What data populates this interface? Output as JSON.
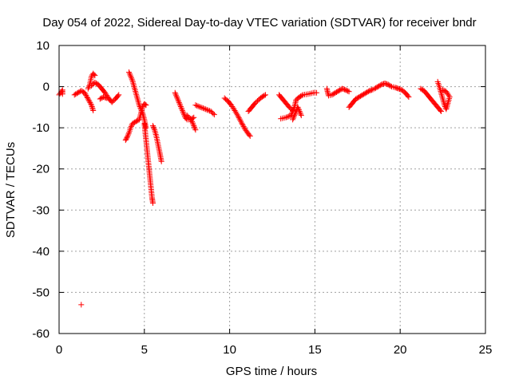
{
  "chart_data": {
    "type": "scatter",
    "title": "Day 054 of 2022, Sidereal Day-to-day VTEC variation (SDTVAR) for receiver bndr",
    "xlabel": "GPS time / hours",
    "ylabel": "SDTVAR / TECUs",
    "xlim": [
      0,
      25
    ],
    "ylim": [
      -60,
      10
    ],
    "xticks": [
      0,
      5,
      10,
      15,
      20,
      25
    ],
    "yticks": [
      10,
      0,
      -10,
      -20,
      -30,
      -40,
      -50,
      -60
    ],
    "xtick_labels": [
      "0",
      "5",
      "10",
      "15",
      "20",
      "25"
    ],
    "ytick_labels": [
      "10",
      "0",
      "-10",
      "-20",
      "-30",
      "-40",
      "-50",
      "-60"
    ],
    "grid": true,
    "legend": "none",
    "marker": "plus",
    "color": "#ff0000",
    "segments": [
      [
        [
          0.0,
          -2.0
        ],
        [
          0.1,
          -1.4
        ],
        [
          0.2,
          -0.8
        ],
        [
          0.2,
          -1.8
        ]
      ],
      [
        [
          0.9,
          -2.0
        ],
        [
          1.1,
          -1.5
        ],
        [
          1.3,
          -1.0
        ],
        [
          1.5,
          -1.5
        ],
        [
          1.7,
          -3.0
        ],
        [
          1.9,
          -4.5
        ],
        [
          2.0,
          -5.8
        ]
      ],
      [
        [
          1.7,
          -0.5
        ],
        [
          1.8,
          0.5
        ],
        [
          1.9,
          2.5
        ],
        [
          2.0,
          3.2
        ],
        [
          2.1,
          2.7
        ]
      ],
      [
        [
          1.9,
          0.2
        ],
        [
          2.1,
          1.0
        ],
        [
          2.3,
          0.5
        ],
        [
          2.5,
          -0.5
        ],
        [
          2.7,
          -1.5
        ],
        [
          2.9,
          -2.8
        ],
        [
          3.1,
          -3.8
        ],
        [
          3.3,
          -3.0
        ],
        [
          3.5,
          -2.0
        ]
      ],
      [
        [
          2.4,
          -3.0
        ],
        [
          2.6,
          -2.5
        ],
        [
          2.8,
          -2.8
        ]
      ],
      [
        [
          4.1,
          3.5
        ],
        [
          4.2,
          2.5
        ],
        [
          4.3,
          1.5
        ],
        [
          4.4,
          0.0
        ],
        [
          4.5,
          -1.5
        ],
        [
          4.6,
          -3.0
        ],
        [
          4.7,
          -4.5
        ],
        [
          4.8,
          -5.5
        ],
        [
          4.9,
          -6.5
        ],
        [
          5.0,
          -8.0
        ],
        [
          5.1,
          -10.0
        ]
      ],
      [
        [
          3.9,
          -13.0
        ],
        [
          4.0,
          -12.2
        ],
        [
          4.1,
          -11.2
        ],
        [
          4.2,
          -10.0
        ],
        [
          4.3,
          -9.0
        ],
        [
          4.5,
          -8.5
        ],
        [
          4.7,
          -8.0
        ],
        [
          4.8,
          -6.5
        ],
        [
          4.9,
          -4.8
        ],
        [
          5.0,
          -4.2
        ],
        [
          5.1,
          -4.5
        ]
      ],
      [
        [
          5.0,
          -9.0
        ],
        [
          5.05,
          -11.0
        ],
        [
          5.1,
          -13.0
        ],
        [
          5.15,
          -15.0
        ],
        [
          5.2,
          -17.0
        ],
        [
          5.25,
          -19.0
        ],
        [
          5.3,
          -21.0
        ],
        [
          5.35,
          -23.0
        ],
        [
          5.4,
          -25.0
        ],
        [
          5.45,
          -27.0
        ],
        [
          5.5,
          -28.3
        ]
      ],
      [
        [
          5.5,
          -9.5
        ],
        [
          5.6,
          -10.5
        ],
        [
          5.7,
          -12.0
        ],
        [
          5.8,
          -14.0
        ],
        [
          5.9,
          -16.0
        ],
        [
          6.0,
          -18.2
        ]
      ],
      [
        [
          6.8,
          -1.5
        ],
        [
          6.9,
          -2.5
        ],
        [
          7.0,
          -3.5
        ],
        [
          7.1,
          -4.5
        ],
        [
          7.2,
          -5.5
        ],
        [
          7.3,
          -6.5
        ],
        [
          7.4,
          -7.5
        ],
        [
          7.5,
          -8.0
        ],
        [
          7.7,
          -8.0
        ],
        [
          7.9,
          -7.5
        ]
      ],
      [
        [
          7.5,
          -7.0
        ],
        [
          7.7,
          -7.8
        ],
        [
          7.8,
          -8.5
        ],
        [
          7.9,
          -9.5
        ],
        [
          8.0,
          -10.5
        ]
      ],
      [
        [
          8.0,
          -4.5
        ],
        [
          8.3,
          -5.0
        ],
        [
          8.6,
          -5.5
        ],
        [
          8.9,
          -6.0
        ],
        [
          9.1,
          -6.8
        ]
      ],
      [
        [
          9.7,
          -2.8
        ],
        [
          9.9,
          -3.5
        ],
        [
          10.1,
          -4.5
        ],
        [
          10.3,
          -5.8
        ],
        [
          10.5,
          -7.2
        ],
        [
          10.7,
          -8.8
        ],
        [
          10.9,
          -10.3
        ],
        [
          11.1,
          -11.5
        ],
        [
          11.2,
          -12.0
        ]
      ],
      [
        [
          11.1,
          -6.0
        ],
        [
          11.3,
          -5.0
        ],
        [
          11.5,
          -4.0
        ],
        [
          11.7,
          -3.2
        ],
        [
          11.9,
          -2.5
        ],
        [
          12.1,
          -2.0
        ]
      ],
      [
        [
          12.9,
          -2.0
        ],
        [
          13.1,
          -3.0
        ],
        [
          13.3,
          -4.0
        ],
        [
          13.5,
          -5.0
        ],
        [
          13.7,
          -5.8
        ]
      ],
      [
        [
          13.0,
          -7.8
        ],
        [
          13.3,
          -7.5
        ],
        [
          13.6,
          -7.0
        ],
        [
          13.8,
          -5.0
        ],
        [
          13.9,
          -3.2
        ],
        [
          14.1,
          -2.5
        ],
        [
          14.3,
          -2.0
        ],
        [
          14.6,
          -1.8
        ],
        [
          14.9,
          -1.5
        ],
        [
          15.1,
          -1.5
        ]
      ],
      [
        [
          13.7,
          -8.0
        ],
        [
          13.8,
          -7.0
        ],
        [
          13.9,
          -6.0
        ],
        [
          14.0,
          -5.0
        ],
        [
          14.1,
          -6.0
        ],
        [
          14.2,
          -7.0
        ]
      ],
      [
        [
          15.7,
          -0.5
        ],
        [
          15.8,
          -2.2
        ],
        [
          16.0,
          -2.0
        ],
        [
          16.2,
          -1.5
        ],
        [
          16.4,
          -1.0
        ],
        [
          16.6,
          -0.5
        ],
        [
          16.8,
          -0.8
        ],
        [
          17.0,
          -1.2
        ]
      ],
      [
        [
          17.0,
          -5.0
        ],
        [
          17.2,
          -4.0
        ],
        [
          17.4,
          -3.0
        ],
        [
          17.6,
          -2.5
        ],
        [
          17.8,
          -2.0
        ],
        [
          18.0,
          -1.5
        ],
        [
          18.2,
          -1.0
        ],
        [
          18.4,
          -0.7
        ]
      ],
      [
        [
          18.5,
          -0.5
        ],
        [
          18.7,
          0.0
        ],
        [
          18.9,
          0.5
        ],
        [
          19.1,
          0.8
        ],
        [
          19.3,
          0.5
        ],
        [
          19.5,
          0.0
        ],
        [
          19.7,
          -0.2
        ],
        [
          19.9,
          -0.5
        ],
        [
          20.1,
          -0.8
        ],
        [
          20.3,
          -1.5
        ],
        [
          20.5,
          -2.5
        ]
      ],
      [
        [
          21.2,
          -0.5
        ],
        [
          21.4,
          -1.0
        ],
        [
          21.6,
          -2.0
        ],
        [
          21.8,
          -3.0
        ],
        [
          22.0,
          -4.0
        ],
        [
          22.2,
          -5.0
        ],
        [
          22.4,
          -6.0
        ]
      ],
      [
        [
          22.2,
          1.2
        ],
        [
          22.3,
          0.0
        ],
        [
          22.4,
          -1.5
        ],
        [
          22.5,
          -3.0
        ],
        [
          22.6,
          -4.5
        ],
        [
          22.7,
          -5.5
        ],
        [
          22.8,
          -4.0
        ],
        [
          22.9,
          -2.5
        ],
        [
          22.7,
          -1.2
        ],
        [
          22.5,
          -0.8
        ]
      ]
    ],
    "points": [
      [
        1.3,
        -53.0
      ]
    ]
  }
}
